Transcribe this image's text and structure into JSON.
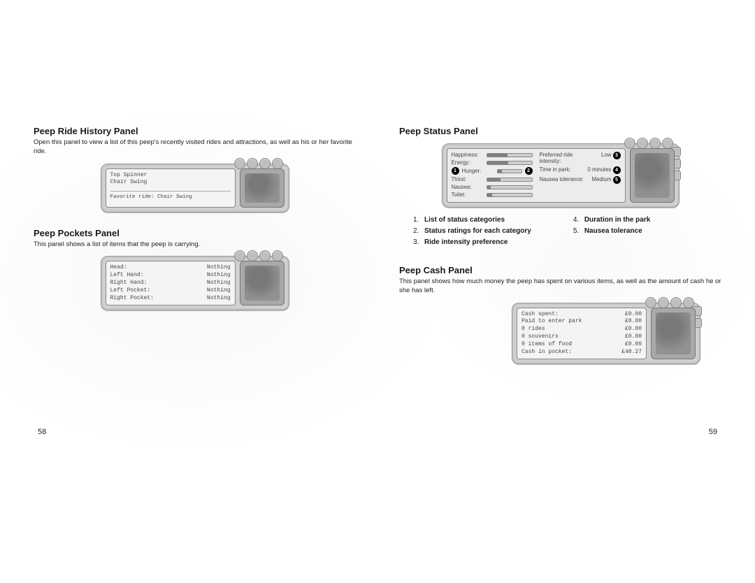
{
  "left": {
    "ride_history": {
      "title": "Peep Ride History Panel",
      "desc": "Open this panel to view a list of this peep's recently visited rides and attractions, as well as his or her favorite ride.",
      "rides": [
        "Top Spinner",
        "Chair Swing"
      ],
      "favorite": "Favorite ride: Chair Swing"
    },
    "pockets": {
      "title": "Peep Pockets Panel",
      "desc": "This panel shows a list of items that the peep is carrying.",
      "items": [
        {
          "k": "Head:",
          "v": "Nothing"
        },
        {
          "k": "Left Hand:",
          "v": "Nothing"
        },
        {
          "k": "Right Hand:",
          "v": "Nothing"
        },
        {
          "k": "Left Pocket:",
          "v": "Nothing"
        },
        {
          "k": "Right Pocket:",
          "v": "Nothing"
        }
      ]
    },
    "pagenum": "58"
  },
  "right": {
    "status": {
      "title": "Peep Status Panel",
      "left_rows": [
        {
          "lbl": "Happiness:",
          "fill": 46
        },
        {
          "lbl": "Energy:",
          "fill": 48
        },
        {
          "lbl": "Hunger:",
          "fill": 18
        },
        {
          "lbl": "Thirst:",
          "fill": 30
        },
        {
          "lbl": "Nausea:",
          "fill": 8
        },
        {
          "lbl": "Toilet:",
          "fill": 12
        }
      ],
      "right_rows": [
        {
          "lbl": "Preferred ride intensity:",
          "val": "Low"
        },
        {
          "lbl": "Time in park:",
          "val": "0 minutes"
        },
        {
          "lbl": "Nausea tolerance:",
          "val": "Medium"
        }
      ],
      "legend_left": [
        {
          "n": "1.",
          "t": "List of status categories"
        },
        {
          "n": "2.",
          "t": "Status ratings for each category"
        },
        {
          "n": "3.",
          "t": "Ride intensity preference"
        }
      ],
      "legend_right": [
        {
          "n": "4.",
          "t": "Duration in the park"
        },
        {
          "n": "5.",
          "t": "Nausea tolerance"
        }
      ]
    },
    "cash": {
      "title": "Peep Cash Panel",
      "desc": "This panel shows how much money the peep has spent on various items, as well as the amount of cash he or she has left.",
      "rows": [
        {
          "k": "Cash spent:",
          "v": "£0.00"
        },
        {
          "k": "Paid to enter park",
          "v": "£0.00"
        },
        {
          "k": "0 rides",
          "v": "£0.00"
        },
        {
          "k": "0 souvenirs",
          "v": "£0.00"
        },
        {
          "k": "0 items of food",
          "v": "£0.00"
        },
        {
          "k": "Cash in pocket:",
          "v": "£48.27"
        }
      ]
    },
    "pagenum": "59"
  },
  "style": {
    "panel_bg": "#d0d0d0",
    "list_bg": "#f4f4f4"
  }
}
